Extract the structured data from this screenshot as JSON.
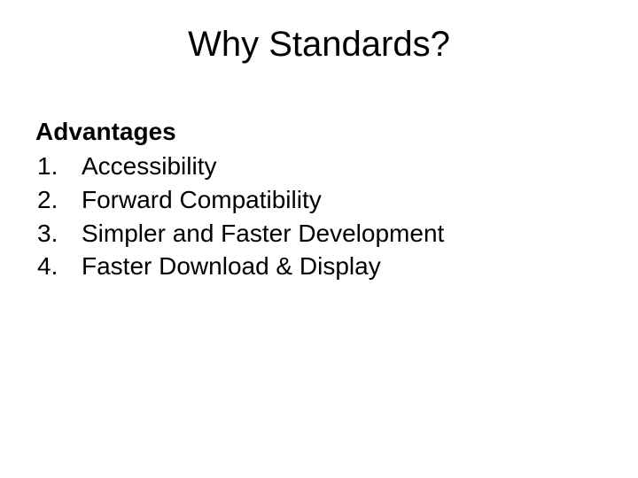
{
  "slide": {
    "title": "Why Standards?",
    "subheading": "Advantages",
    "items": [
      {
        "number": "1.",
        "text": "Accessibility"
      },
      {
        "number": "2.",
        "text": "Forward Compatibility"
      },
      {
        "number": "3.",
        "text": "Simpler and Faster Development"
      },
      {
        "number": "4.",
        "text": "Faster Download & Display"
      }
    ],
    "colors": {
      "background": "#ffffff",
      "text": "#000000"
    },
    "typography": {
      "title_fontsize": 40,
      "title_weight": "normal",
      "subheading_fontsize": 28,
      "subheading_weight": "bold",
      "body_fontsize": 28,
      "body_weight": "normal",
      "font_family": "Arial"
    }
  }
}
